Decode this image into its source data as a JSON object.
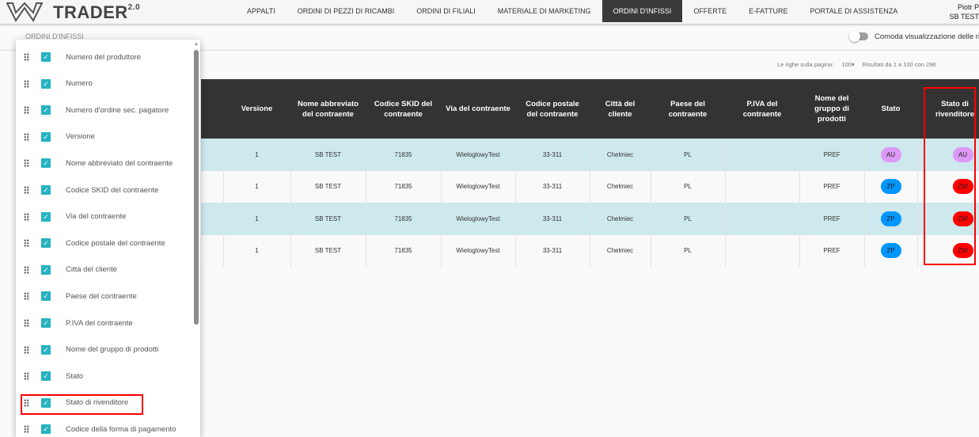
{
  "header": {
    "brand": "TRADER",
    "brand_version": "2.0",
    "nav": [
      "APPALTI",
      "ORDINI DI PEZZI DI RICAMBI",
      "ORDINI DI FILIALI",
      "MATERIALE DI MARKETING",
      "ORDINI D'INFISSI",
      "OFFERTE",
      "E-FATTURE",
      "PORTALE DI ASSISTENZA"
    ],
    "active_nav": "ORDINI D'INFISSI",
    "user_name": "Piotr P",
    "user_company": "SB TEST"
  },
  "breadcrumb": "ORDINI D'INFISSI",
  "comfort_toggle_label": "Comoda visualizzazione delle rig",
  "pager": {
    "rows_label": "Le righe sulla pagina:",
    "rows_value": "100",
    "results": "Risultati da 1 a 100 con 296"
  },
  "table": {
    "headers": [
      "",
      "Versione",
      "Nome abbreviato del contraente",
      "Codice SKID del contraente",
      "Via del contraente",
      "Codice postale del contraente",
      "Città del cliente",
      "Paese del contraente",
      "P.IVA del contraente",
      "Nome del gruppo di prodotti",
      "Stato",
      "Stato di rivenditore"
    ],
    "rows": [
      {
        "versione": "1",
        "nome": "SB TEST",
        "skid": "71835",
        "via": "WieloglowyTest",
        "postale": "33-311",
        "citta": "Chelmiec",
        "paese": "PL",
        "piva": "",
        "gruppo": "PREF",
        "stato": "AU",
        "stato_riv": "AU"
      },
      {
        "versione": "1",
        "nome": "SB TEST",
        "skid": "71835",
        "via": "WieloglowyTest",
        "postale": "33-311",
        "citta": "Chelmiec",
        "paese": "PL",
        "piva": "",
        "gruppo": "PREF",
        "stato": "ZP",
        "stato_riv": "ZW"
      },
      {
        "versione": "1",
        "nome": "SB TEST",
        "skid": "71835",
        "via": "WieloglowyTest",
        "postale": "33-311",
        "citta": "Chelmiec",
        "paese": "PL",
        "piva": "",
        "gruppo": "PREF",
        "stato": "ZP",
        "stato_riv": "ZW"
      },
      {
        "versione": "1",
        "nome": "SB TEST",
        "skid": "71835",
        "via": "WieloglowyTest",
        "postale": "33-311",
        "citta": "Chelmiec",
        "paese": "PL",
        "piva": "",
        "gruppo": "PREF",
        "stato": "ZP",
        "stato_riv": "ZW"
      }
    ]
  },
  "status_colors": {
    "AU": "#dd99f5",
    "ZP": "#0096ff",
    "ZW": "#ff0000"
  },
  "column_panel": {
    "items": [
      "Numero del produttore",
      "Numero",
      "Numero d'ordine sec. pagatore",
      "Versione",
      "Nome abbreviato del contraente",
      "Codice SKID del contraente",
      "Via del contraente",
      "Codice postale del contraente",
      "Città del cliente",
      "Paese del contraente",
      "P.IVA del contraente",
      "Nome del gruppo di prodotti",
      "Stato",
      "Stato di rivenditore",
      "Codice della forma di pagamento"
    ],
    "highlighted": "Stato di rivenditore"
  }
}
